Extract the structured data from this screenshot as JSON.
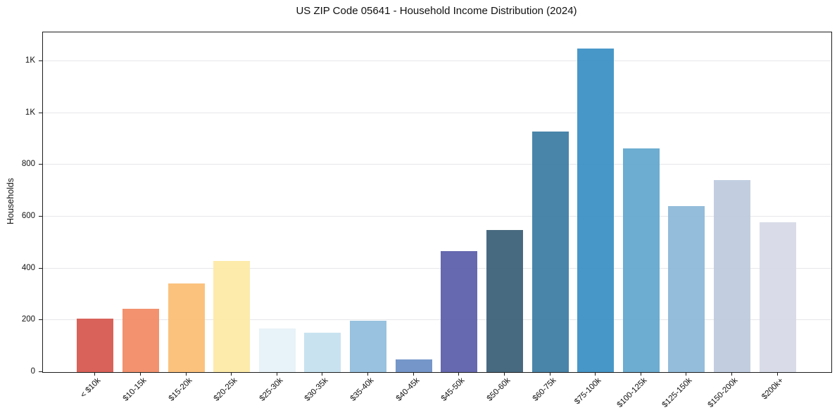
{
  "chart_data": {
    "type": "bar",
    "title": "US ZIP Code 05641 - Household Income Distribution (2024)",
    "xlabel": "",
    "ylabel": "Households",
    "categories": [
      "< $10k",
      "$10-15k",
      "$15-20k",
      "$20-25k",
      "$25-30k",
      "$30-35k",
      "$35-40k",
      "$40-45k",
      "$45-50k",
      "$50-60k",
      "$60-75k",
      "$75-100k",
      "$100-125k",
      "$125-150k",
      "$150-200k",
      "$200k+"
    ],
    "values": [
      206,
      243,
      341,
      430,
      167,
      151,
      199,
      50,
      468,
      549,
      929,
      1248,
      862,
      640,
      742,
      577
    ],
    "bar_colors": [
      "#d6564d",
      "#f18a63",
      "#fbbd74",
      "#fde9a5",
      "#e5f2f7",
      "#c4e0ef",
      "#90bddd",
      "#6a8ec5",
      "#5a5ea9",
      "#3a5f76",
      "#3b7ca2",
      "#3a8fc5",
      "#61a7cd",
      "#8cb8d8",
      "#bdcade",
      "#d6d9e6"
    ],
    "ylim": [
      0,
      1311
    ],
    "yticks": [
      {
        "value": 0,
        "label": "0"
      },
      {
        "value": 200,
        "label": "200"
      },
      {
        "value": 400,
        "label": "400"
      },
      {
        "value": 600,
        "label": "600"
      },
      {
        "value": 800,
        "label": "800"
      },
      {
        "value": 1000,
        "label": "1K"
      },
      {
        "value": 1200,
        "label": "1K"
      }
    ],
    "grid": "horizontal",
    "legend": "none"
  },
  "colors": {
    "background": "#ffffff",
    "gridline": "#e7e7ea",
    "spine": "#1c1c1c",
    "text": "#111111"
  }
}
